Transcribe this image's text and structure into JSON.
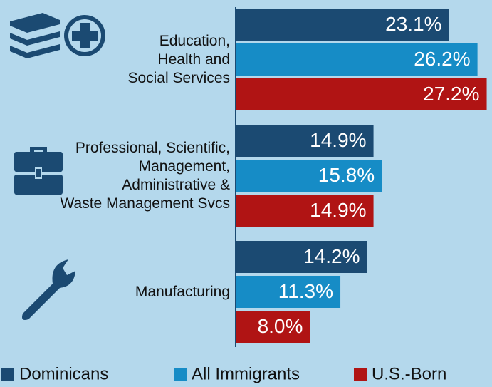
{
  "chart_data": {
    "type": "hbar",
    "categories": [
      "Education,\nHealth and\nSocial Services",
      "Professional, Scientific,\nManagement,\nAdministrative &\nWaste Management Svcs",
      "Manufacturing"
    ],
    "series": [
      {
        "name": "Dominicans",
        "color": "#1b4a72",
        "values": [
          23.1,
          14.9,
          14.2
        ],
        "value_labels": [
          "23.1%",
          "14.9%",
          "14.2%"
        ]
      },
      {
        "name": "All Immigrants",
        "color": "#168cc6",
        "values": [
          26.2,
          15.8,
          11.3
        ],
        "value_labels": [
          "26.2%",
          "15.8%",
          "11.3%"
        ]
      },
      {
        "name": "U.S.-Born",
        "color": "#b01414",
        "values": [
          27.2,
          14.9,
          8.0
        ],
        "value_labels": [
          "27.2%",
          "14.9%",
          "8.0%"
        ]
      }
    ],
    "xlim": [
      0,
      27.7
    ],
    "legend": "bottom"
  }
}
